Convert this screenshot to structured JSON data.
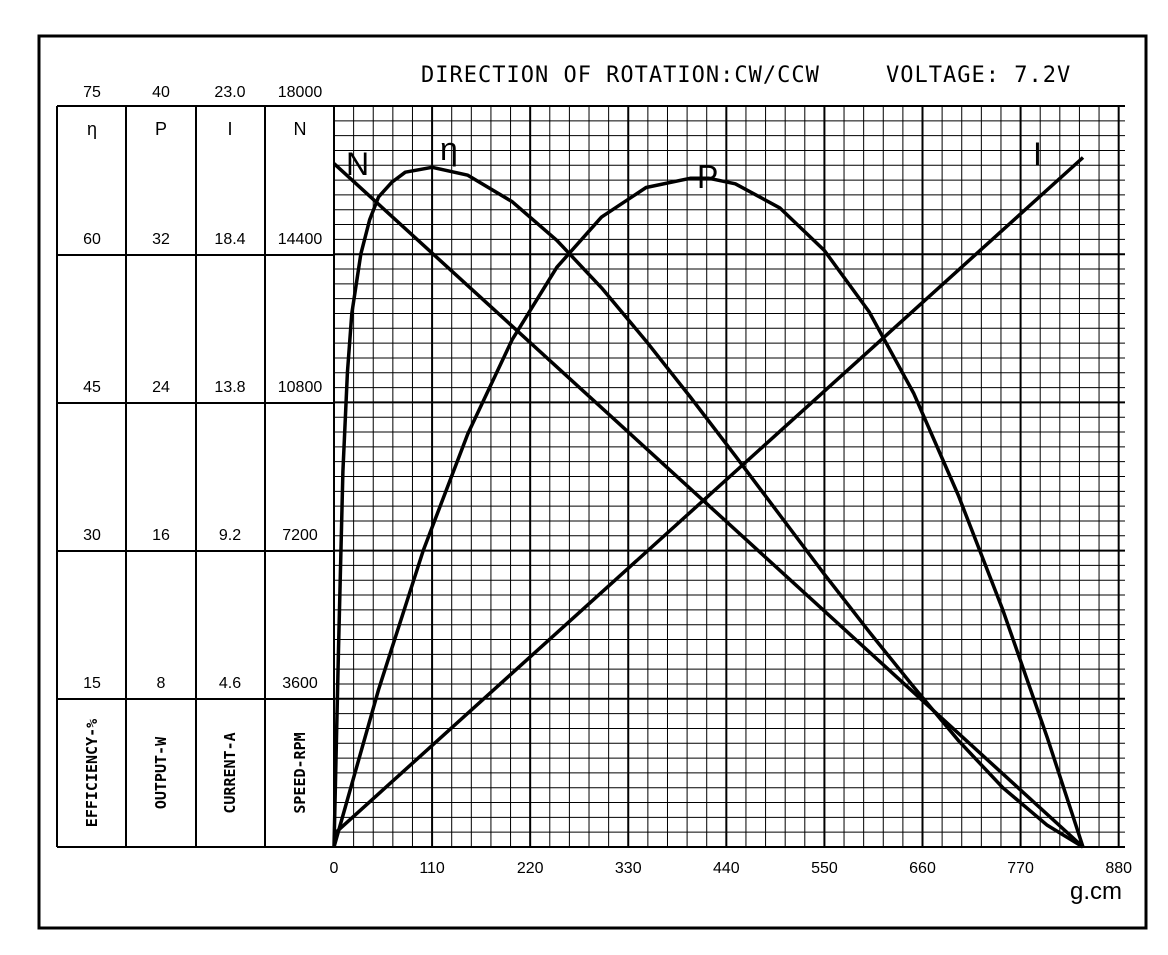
{
  "header": {
    "direction": "DIRECTION OF ROTATION:CW/CCW",
    "voltage": "VOLTAGE: 7.2V"
  },
  "x_unit": "g.cm",
  "columns": [
    {
      "symbol": "η",
      "name": "EFFICIENCY-%",
      "top": "75",
      "ticks": [
        "60",
        "45",
        "30",
        "15"
      ]
    },
    {
      "symbol": "P",
      "name": "OUTPUT-W",
      "top": "40",
      "ticks": [
        "32",
        "24",
        "16",
        "8"
      ]
    },
    {
      "symbol": "I",
      "name": "CURRENT-A",
      "top": "23.0",
      "ticks": [
        "18.4",
        "13.8",
        "9.2",
        "4.6"
      ]
    },
    {
      "symbol": "N",
      "name": "SPEED-RPM",
      "top": "18000",
      "ticks": [
        "14400",
        "10800",
        "7200",
        "3600"
      ]
    }
  ],
  "chart_data": {
    "type": "line",
    "title": "DIRECTION OF ROTATION:CW/CCW   VOLTAGE: 7.2V",
    "xlabel": "g.cm",
    "x_ticks": [
      "0",
      "110",
      "220",
      "330",
      "440",
      "550",
      "660",
      "770",
      "880"
    ],
    "xlim": [
      0,
      880
    ],
    "grid": true,
    "series": [
      {
        "name": "N",
        "axis": "SPEED-RPM",
        "ylim": [
          0,
          18000
        ],
        "x": [
          0,
          840
        ],
        "y": [
          16600,
          0
        ]
      },
      {
        "name": "I",
        "axis": "CURRENT-A",
        "ylim": [
          0,
          23.0
        ],
        "x": [
          0,
          840
        ],
        "y": [
          0.4,
          21.4
        ]
      },
      {
        "name": "P",
        "axis": "OUTPUT-W",
        "ylim": [
          0,
          40
        ],
        "x": [
          0,
          50,
          100,
          150,
          200,
          250,
          300,
          350,
          400,
          420,
          450,
          500,
          550,
          600,
          650,
          700,
          750,
          800,
          840
        ],
        "y": [
          0,
          8.5,
          16.0,
          22.3,
          27.4,
          31.3,
          34.0,
          35.6,
          36.1,
          36.1,
          35.8,
          34.5,
          32.2,
          28.9,
          24.5,
          19.0,
          12.8,
          5.9,
          0
        ]
      },
      {
        "name": "η",
        "axis": "EFFICIENCY-%",
        "ylim": [
          0,
          75
        ],
        "x": [
          0,
          5,
          10,
          15,
          20,
          30,
          40,
          50,
          65,
          80,
          110,
          150,
          200,
          250,
          300,
          350,
          400,
          450,
          500,
          550,
          600,
          650,
          700,
          750,
          800,
          840
        ],
        "y": [
          0,
          20,
          38,
          48,
          54,
          60,
          63.5,
          65.8,
          67.3,
          68.3,
          68.8,
          68.0,
          65.3,
          61.4,
          56.6,
          51.2,
          45.5,
          39.6,
          33.6,
          27.6,
          21.8,
          16.2,
          10.8,
          6.0,
          2.2,
          0
        ]
      }
    ]
  }
}
